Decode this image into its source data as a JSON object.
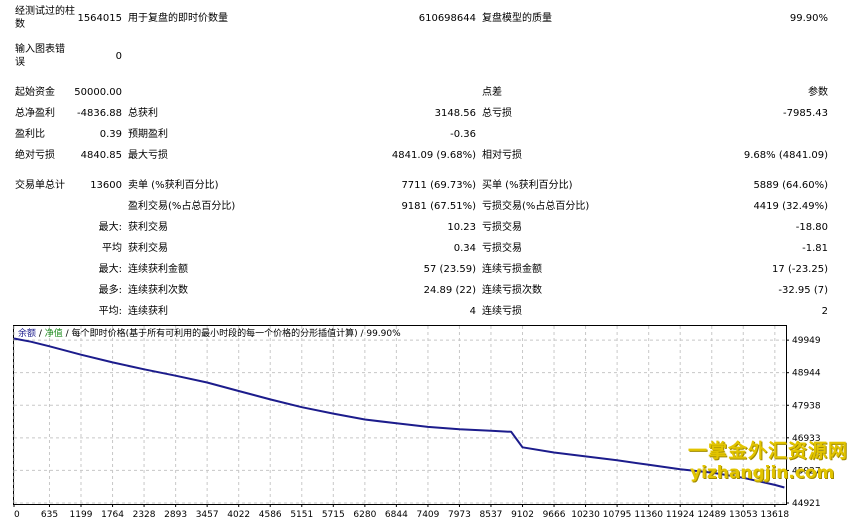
{
  "report": {
    "r1": {
      "bars_label": "经测试过的柱数",
      "bars_value": "1564015",
      "ticks_label": "用于复盘的即时价数量",
      "ticks_value": "610698644",
      "quality_label": "复盘模型的质量",
      "quality_value": "99.90%"
    },
    "r2": {
      "mismatch_label": "输入图表错误",
      "mismatch_value": "0"
    },
    "r3": {
      "deposit_label": "起始资金",
      "deposit_value": "50000.00",
      "spread_label": "点差",
      "spread_value": "参数"
    },
    "r4": {
      "net_label": "总净盈利",
      "net_value": "-4836.88",
      "gross_profit_label": "总获利",
      "gross_profit_value": "3148.56",
      "gross_loss_label": "总亏损",
      "gross_loss_value": "-7985.43"
    },
    "r5": {
      "pf_label": "盈利比",
      "pf_value": "0.39",
      "payoff_label": "预期盈利",
      "payoff_value": "-0.36"
    },
    "r6": {
      "abs_dd_label": "绝对亏损",
      "abs_dd_value": "4840.85",
      "max_dd_label": "最大亏损",
      "max_dd_value": "4841.09 (9.68%)",
      "rel_dd_label": "相对亏损",
      "rel_dd_value": "9.68% (4841.09)"
    },
    "r7": {
      "trades_label": "交易单总计",
      "trades_value": "13600",
      "short_label": "卖单 (%获利百分比)",
      "short_value": "7711 (69.73%)",
      "long_label": "买单 (%获利百分比)",
      "long_value": "5889 (64.60%)"
    },
    "r8": {
      "profit_trades_label": "盈利交易(%占总百分比)",
      "profit_trades_value": "9181 (67.51%)",
      "loss_trades_label": "亏损交易(%占总百分比)",
      "loss_trades_value": "4419 (32.49%)"
    },
    "r9": {
      "prefix": "最大:",
      "profit_label": "获利交易",
      "profit_value": "10.23",
      "loss_label": "亏损交易",
      "loss_value": "-18.80"
    },
    "r10": {
      "prefix": "平均",
      "profit_label": "获利交易",
      "profit_value": "0.34",
      "loss_label": "亏损交易",
      "loss_value": "-1.81"
    },
    "r11": {
      "prefix": "最大:",
      "profit_label": "连续获利金额",
      "profit_value": "57 (23.59)",
      "loss_label": "连续亏损金额",
      "loss_value": "17 (-23.25)"
    },
    "r12": {
      "prefix": "最多:",
      "profit_label": "连续获利次数",
      "profit_value": "24.89 (22)",
      "loss_label": "连续亏损次数",
      "loss_value": "-32.95 (7)"
    },
    "r13": {
      "prefix": "平均:",
      "profit_label": "连续获利",
      "profit_value": "4",
      "loss_label": "连续亏损",
      "loss_value": "2"
    }
  },
  "legend": {
    "balance": "余额",
    "sep1": " / ",
    "equity": "净值",
    "sep2": " / ",
    "info": "每个即时价格(基于所有可利用的最小时段的每一个价格的分形插值计算)",
    "sep3": " / ",
    "quality": "99.90%"
  },
  "watermark": {
    "line1": "一掌金外汇资源网",
    "line2": "yizhangjin.com"
  },
  "colors": {
    "balance": "#1c1c8c",
    "grid": "#c8c8c8",
    "legend_balance": "#1c1c8c",
    "legend_equity": "#1e8c1e",
    "watermark": "#e2c400"
  },
  "chart_data": {
    "type": "line",
    "x_ticks": [
      0,
      635,
      1199,
      1764,
      2328,
      2893,
      3457,
      4022,
      4586,
      5151,
      5715,
      6280,
      6844,
      7409,
      7973,
      8537,
      9102,
      9666,
      10230,
      10795,
      11360,
      11924,
      12489,
      13053,
      13618
    ],
    "y_ticks": [
      49949,
      48944,
      47938,
      46933,
      45927,
      44921
    ],
    "xlim": [
      0,
      13800
    ],
    "ylim": [
      44921,
      50200
    ],
    "series": [
      {
        "x": [
          0,
          300,
          635,
          1199,
          1764,
          2328,
          2893,
          3457,
          4022,
          4586,
          5151,
          5715,
          6280,
          6844,
          7409,
          7973,
          8537,
          8900,
          9000,
          9102,
          9666,
          10230,
          10795,
          11360,
          11924,
          12489,
          13053,
          13618,
          13790
        ],
        "y": [
          50000,
          49900,
          49760,
          49500,
          49260,
          49050,
          48850,
          48640,
          48380,
          48120,
          47880,
          47680,
          47500,
          47380,
          47270,
          47200,
          47150,
          47120,
          46880,
          46640,
          46480,
          46360,
          46240,
          46100,
          45960,
          45860,
          45700,
          45480,
          45400
        ]
      }
    ]
  }
}
